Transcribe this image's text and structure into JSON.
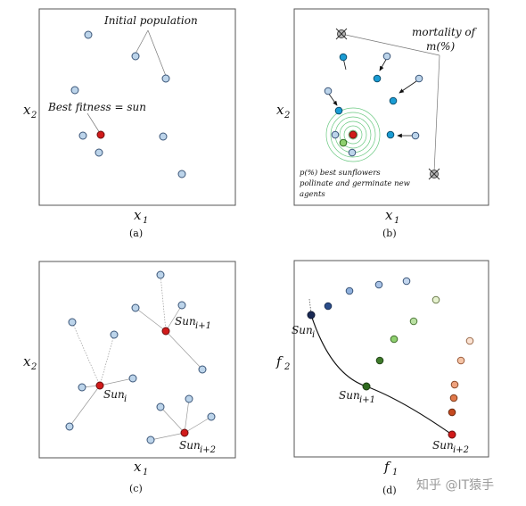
{
  "panels": {
    "a": {
      "caption": "(a)",
      "xlabel": "x",
      "xsub": "1",
      "ylabel": "x",
      "ysub": "2",
      "annotation_initial": "Initial population",
      "annotation_best": "Best fitness = sun"
    },
    "b": {
      "caption": "(b)",
      "xlabel": "x",
      "xsub": "1",
      "ylabel": "x",
      "ysub": "2",
      "mortality_line1": "mortality of",
      "mortality_line2": "m(%)",
      "pollinate_line1": "p(%) best sunflowers",
      "pollinate_line2": "pollinate and germinate new",
      "pollinate_line3": "agents"
    },
    "c": {
      "caption": "(c)",
      "xlabel": "x",
      "xsub": "1",
      "ylabel": "x",
      "ysub": "2",
      "sun_base": "Sun",
      "sun_i_sub": "i",
      "sun_i1_sub": "i+1",
      "sun_i2_sub": "i+2"
    },
    "d": {
      "caption": "(d)",
      "xlabel": "f",
      "xsub": "1",
      "ylabel": "f",
      "ysub": "2",
      "sun_base": "Sun",
      "sun_i_sub": "i",
      "sun_i1_sub": "i+1",
      "sun_i2_sub": "i+2"
    }
  },
  "watermark": "知乎 @IT猿手",
  "colors": {
    "agent_fill": "#bcd4ea",
    "agent_stroke": "#3a5578",
    "sun": "#d11a1a",
    "cyan_agent": "#1a9cd4",
    "pollination_rings": "#4fbf6a"
  }
}
